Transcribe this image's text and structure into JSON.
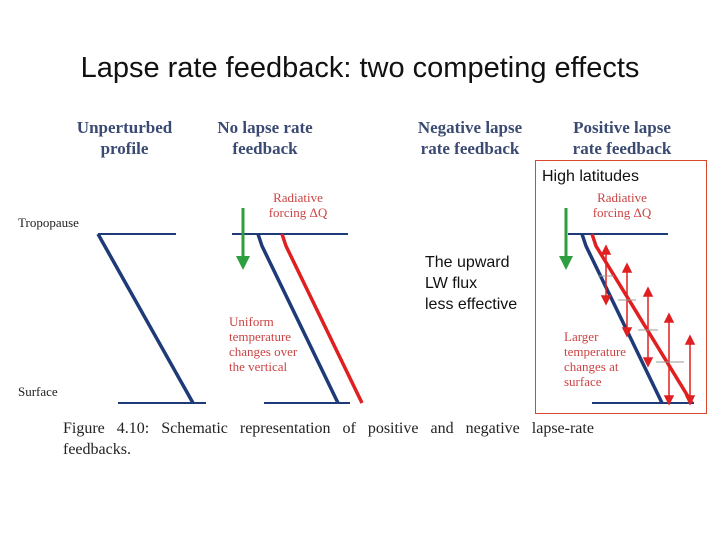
{
  "title": "Lapse rate feedback: two competing effects",
  "headers": {
    "unperturbed": "Unperturbed profile",
    "no_feedback": "No lapse rate feedback",
    "negative": "Negative lapse rate feedback",
    "positive": "Positive lapse rate feedback"
  },
  "levels": {
    "tropopause": "Tropopause",
    "surface": "Surface"
  },
  "radiative_forcing": "Radiative forcing ΔQ",
  "notes": {
    "uniform": [
      "Uniform",
      "temperature",
      "changes over",
      "the vertical"
    ],
    "larger": [
      "Larger",
      "temperature",
      "changes at",
      "surface"
    ]
  },
  "callouts": {
    "high_latitudes": "High latitudes",
    "upward_lw": [
      "The upward",
      "LW flux",
      "less effective"
    ]
  },
  "caption": {
    "line1": "Figure   4.10:   Schematic   representation   of   positive   and   negative   lapse-rate",
    "line2": "feedbacks."
  },
  "colors": {
    "profile_blue": "#1f3a78",
    "profile_red": "#e02020",
    "forcing_green": "#2e9e3e",
    "box_border": "#d9472b"
  }
}
